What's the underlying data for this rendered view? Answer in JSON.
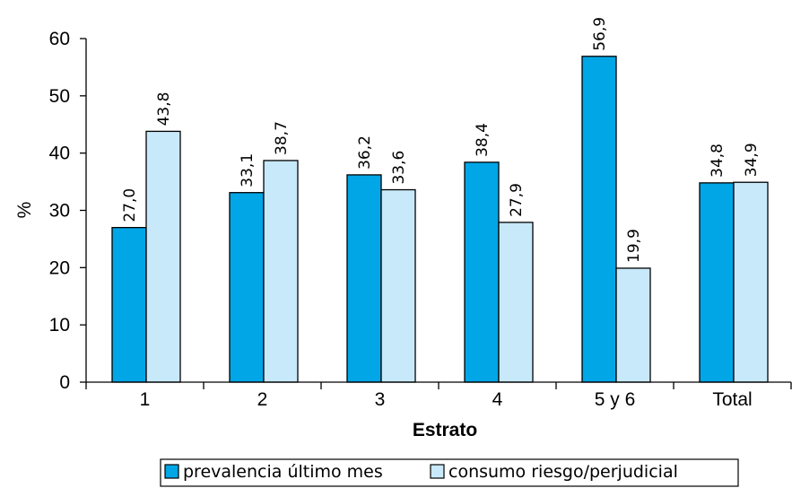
{
  "chart_data": {
    "type": "bar",
    "title": "",
    "xlabel": "Estrato",
    "ylabel": "%",
    "ylim": [
      0,
      60
    ],
    "yticks": [
      0,
      10,
      20,
      30,
      40,
      50,
      60
    ],
    "categories": [
      "1",
      "2",
      "3",
      "4",
      "5 y 6",
      "Total"
    ],
    "series": [
      {
        "name": "prevalencia último mes",
        "color": "#00a6e6",
        "values": [
          27.0,
          33.1,
          36.2,
          38.4,
          56.9,
          34.8
        ],
        "labels": [
          "27,0",
          "33,1",
          "36,2",
          "38,4",
          "56,9",
          "34,8"
        ]
      },
      {
        "name": "consumo riesgo/perjudicial",
        "color": "#c7e9f9",
        "values": [
          43.8,
          38.7,
          33.6,
          27.9,
          19.9,
          34.9
        ],
        "labels": [
          "43,8",
          "38,7",
          "33,6",
          "27,9",
          "19,9",
          "34,9"
        ]
      }
    ],
    "legend_position": "bottom",
    "grid": false
  }
}
